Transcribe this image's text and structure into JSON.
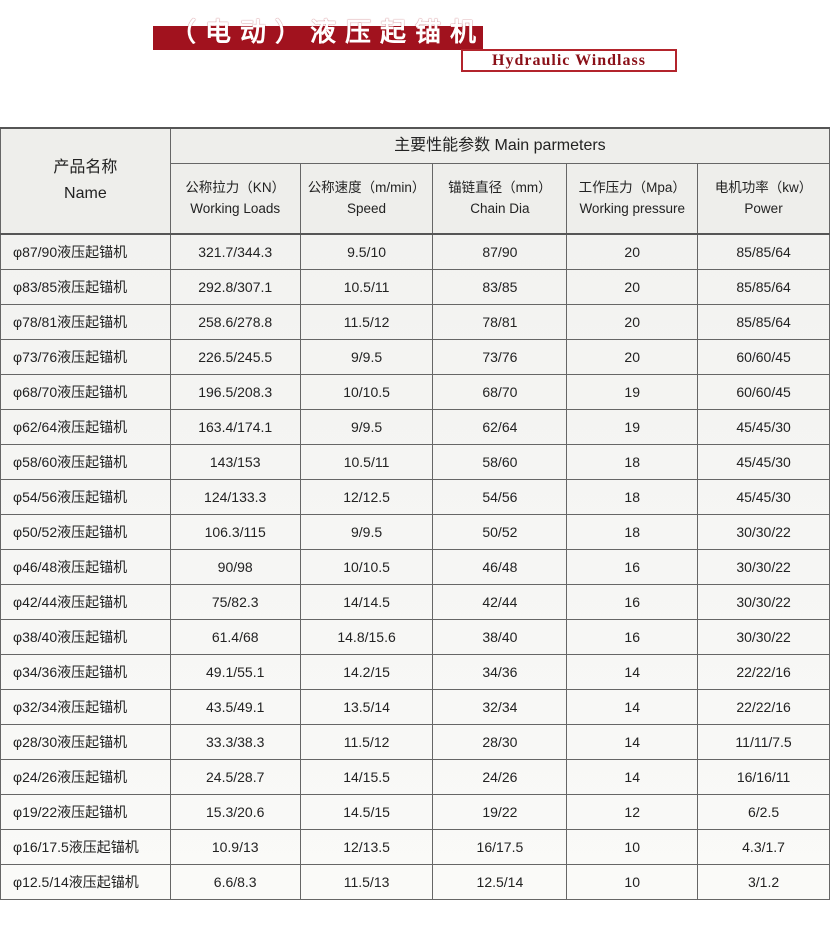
{
  "title": {
    "cn": "（电动）液压起锚机",
    "en": "Hydraulic Windlass"
  },
  "table": {
    "name_header": {
      "cn": "产品名称",
      "en": "Name"
    },
    "group_header": "主要性能参数  Main parmeters",
    "columns": [
      {
        "cn": "公称拉力（KN）",
        "en": "Working Loads"
      },
      {
        "cn": "公称速度（m/min）",
        "en": "Speed"
      },
      {
        "cn": "锚链直径（mm）",
        "en": "Chain Dia"
      },
      {
        "cn": "工作压力（Mpa）",
        "en": "Working pressure"
      },
      {
        "cn": "电机功率（kw）",
        "en": "Power"
      }
    ],
    "rows": [
      [
        "φ87/90液压起锚机",
        "321.7/344.3",
        "9.5/10",
        "87/90",
        "20",
        "85/85/64"
      ],
      [
        "φ83/85液压起锚机",
        "292.8/307.1",
        "10.5/11",
        "83/85",
        "20",
        "85/85/64"
      ],
      [
        "φ78/81液压起锚机",
        "258.6/278.8",
        "11.5/12",
        "78/81",
        "20",
        "85/85/64"
      ],
      [
        "φ73/76液压起锚机",
        "226.5/245.5",
        "9/9.5",
        "73/76",
        "20",
        "60/60/45"
      ],
      [
        "φ68/70液压起锚机",
        "196.5/208.3",
        "10/10.5",
        "68/70",
        "19",
        "60/60/45"
      ],
      [
        "φ62/64液压起锚机",
        "163.4/174.1",
        "9/9.5",
        "62/64",
        "19",
        "45/45/30"
      ],
      [
        "φ58/60液压起锚机",
        "143/153",
        "10.5/11",
        "58/60",
        "18",
        "45/45/30"
      ],
      [
        "φ54/56液压起锚机",
        "124/133.3",
        "12/12.5",
        "54/56",
        "18",
        "45/45/30"
      ],
      [
        "φ50/52液压起锚机",
        "106.3/115",
        "9/9.5",
        "50/52",
        "18",
        "30/30/22"
      ],
      [
        "φ46/48液压起锚机",
        "90/98",
        "10/10.5",
        "46/48",
        "16",
        "30/30/22"
      ],
      [
        "φ42/44液压起锚机",
        "75/82.3",
        "14/14.5",
        "42/44",
        "16",
        "30/30/22"
      ],
      [
        "φ38/40液压起锚机",
        "61.4/68",
        "14.8/15.6",
        "38/40",
        "16",
        "30/30/22"
      ],
      [
        "φ34/36液压起锚机",
        "49.1/55.1",
        "14.2/15",
        "34/36",
        "14",
        "22/22/16"
      ],
      [
        "φ32/34液压起锚机",
        "43.5/49.1",
        "13.5/14",
        "32/34",
        "14",
        "22/22/16"
      ],
      [
        "φ28/30液压起锚机",
        "33.3/38.3",
        "11.5/12",
        "28/30",
        "14",
        "11/11/7.5"
      ],
      [
        "φ24/26液压起锚机",
        "24.5/28.7",
        "14/15.5",
        "24/26",
        "14",
        "16/16/11"
      ],
      [
        "φ19/22液压起锚机",
        "15.3/20.6",
        "14.5/15",
        "19/22",
        "12",
        "6/2.5"
      ],
      [
        "φ16/17.5液压起锚机",
        "10.9/13",
        "12/13.5",
        "16/17.5",
        "10",
        "4.3/1.7"
      ],
      [
        "φ12.5/14液压起锚机",
        "6.6/8.3",
        "11.5/13",
        "12.5/14",
        "10",
        "3/1.2"
      ]
    ]
  }
}
